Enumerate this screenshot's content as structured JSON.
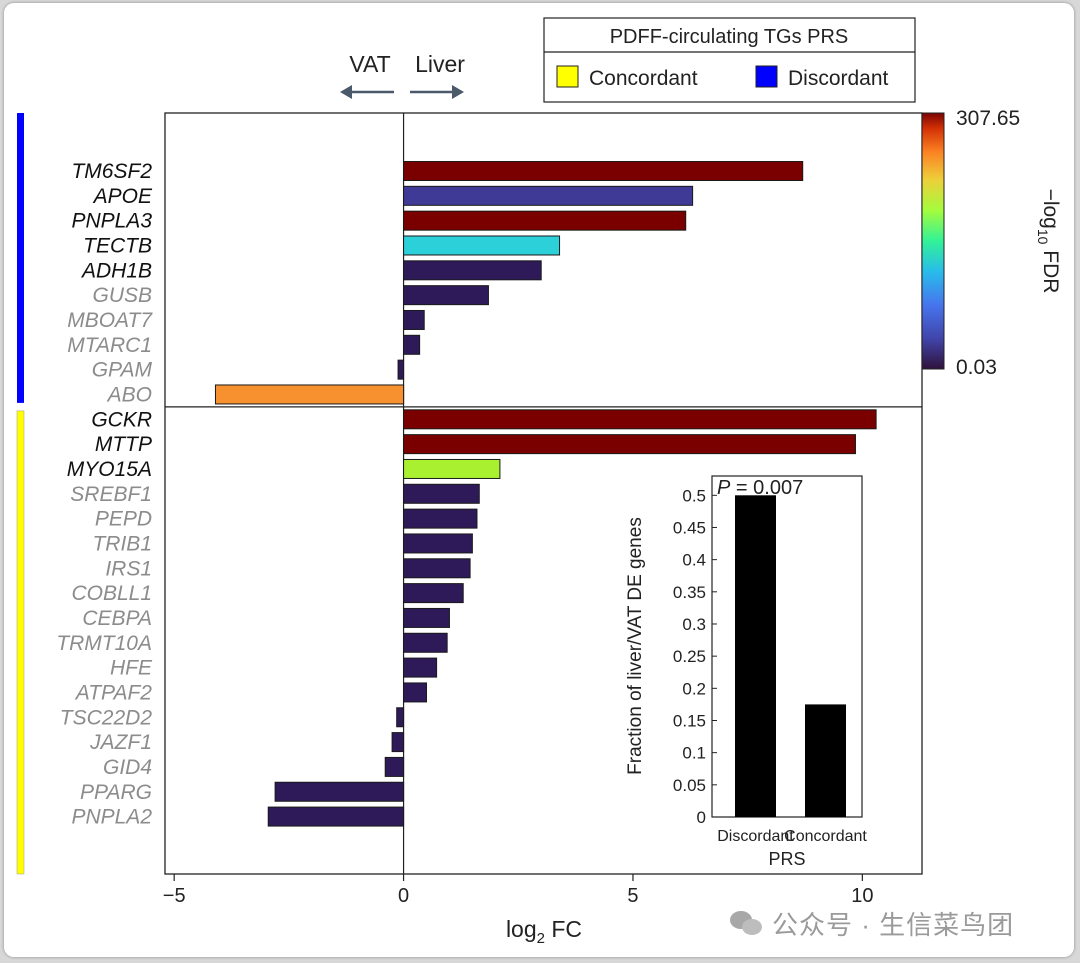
{
  "chart_data": {
    "type": "bar",
    "orientation": "horizontal",
    "xlabel": "log₂ FC",
    "xlabel_parts": {
      "base": "log",
      "sub": "2",
      "rest": " FC"
    },
    "xlim": [
      -5.2,
      11.3
    ],
    "xticks": [
      -5,
      0,
      5,
      10
    ],
    "direction_labels": {
      "left": "VAT",
      "right": "Liver"
    },
    "legend": {
      "title": "PDFF-circulating TGs PRS",
      "entries": [
        {
          "label": "Concordant",
          "color": "#ffff00"
        },
        {
          "label": "Discordant",
          "color": "#0000ff"
        }
      ]
    },
    "colorbar": {
      "label": "−log₁₀ FDR",
      "label_parts": {
        "pre": "−log",
        "sub": "10",
        "rest": " FDR"
      },
      "max_label": "307.65",
      "min_label": "0.03",
      "range": [
        0.03,
        307.65
      ]
    },
    "groups": [
      {
        "name": "Discordant",
        "color": "#0000ff",
        "genes": [
          {
            "gene": "TM6SF2",
            "log2fc": 8.7,
            "color": "#7a0000",
            "highlight": true
          },
          {
            "gene": "APOE",
            "log2fc": 6.3,
            "color": "#3f3a96",
            "highlight": true
          },
          {
            "gene": "PNPLA3",
            "log2fc": 6.15,
            "color": "#7a0000",
            "highlight": true
          },
          {
            "gene": "TECTB",
            "log2fc": 3.4,
            "color": "#2cd0d8",
            "highlight": true
          },
          {
            "gene": "ADH1B",
            "log2fc": 3.0,
            "color": "#2e1a58",
            "highlight": true
          },
          {
            "gene": "GUSB",
            "log2fc": 1.85,
            "color": "#2e1a58",
            "highlight": false
          },
          {
            "gene": "MBOAT7",
            "log2fc": 0.45,
            "color": "#2e1a58",
            "highlight": false
          },
          {
            "gene": "MTARC1",
            "log2fc": 0.35,
            "color": "#2e1a58",
            "highlight": false
          },
          {
            "gene": "GPAM",
            "log2fc": -0.12,
            "color": "#2e1a58",
            "highlight": false
          },
          {
            "gene": "ABO",
            "log2fc": -4.1,
            "color": "#f7902e",
            "highlight": false
          }
        ]
      },
      {
        "name": "Concordant",
        "color": "#ffff00",
        "genes": [
          {
            "gene": "GCKR",
            "log2fc": 10.3,
            "color": "#7a0000",
            "highlight": true
          },
          {
            "gene": "MTTP",
            "log2fc": 9.85,
            "color": "#7a0000",
            "highlight": true
          },
          {
            "gene": "MYO15A",
            "log2fc": 2.1,
            "color": "#a8f030",
            "highlight": true
          },
          {
            "gene": "SREBF1",
            "log2fc": 1.65,
            "color": "#2e1a58",
            "highlight": false
          },
          {
            "gene": "PEPD",
            "log2fc": 1.6,
            "color": "#2e1a58",
            "highlight": false
          },
          {
            "gene": "TRIB1",
            "log2fc": 1.5,
            "color": "#2e1a58",
            "highlight": false
          },
          {
            "gene": "IRS1",
            "log2fc": 1.45,
            "color": "#2e1a58",
            "highlight": false
          },
          {
            "gene": "COBLL1",
            "log2fc": 1.3,
            "color": "#2e1a58",
            "highlight": false
          },
          {
            "gene": "CEBPA",
            "log2fc": 1.0,
            "color": "#2e1a58",
            "highlight": false
          },
          {
            "gene": "TRMT10A",
            "log2fc": 0.95,
            "color": "#2e1a58",
            "highlight": false
          },
          {
            "gene": "HFE",
            "log2fc": 0.72,
            "color": "#2e1a58",
            "highlight": false
          },
          {
            "gene": "ATPAF2",
            "log2fc": 0.5,
            "color": "#2e1a58",
            "highlight": false
          },
          {
            "gene": "TSC22D2",
            "log2fc": -0.15,
            "color": "#2e1a58",
            "highlight": false
          },
          {
            "gene": "JAZF1",
            "log2fc": -0.25,
            "color": "#2e1a58",
            "highlight": false
          },
          {
            "gene": "GID4",
            "log2fc": -0.4,
            "color": "#2e1a58",
            "highlight": false
          },
          {
            "gene": "PPARG",
            "log2fc": -2.8,
            "color": "#2e1a58",
            "highlight": false
          },
          {
            "gene": "PNPLA2",
            "log2fc": -2.95,
            "color": "#2e1a58",
            "highlight": false
          }
        ]
      }
    ],
    "inset": {
      "type": "bar",
      "ylabel": "Fraction of liver/VAT DE genes",
      "xlabel": "PRS",
      "categories": [
        "Discordant",
        "Concordant"
      ],
      "values": [
        0.5,
        0.175
      ],
      "ylim": [
        0,
        0.53
      ],
      "yticks": [
        "0",
        "0.05",
        "0.1",
        "0.15",
        "0.2",
        "0.25",
        "0.3",
        "0.35",
        "0.4",
        "0.45",
        "0.5"
      ],
      "annotation": {
        "p_symbol": "P",
        "text": " = 0.007"
      }
    }
  },
  "watermark": {
    "text": "公众号 · 生信菜鸟团",
    "icon": "wechat-icon"
  }
}
